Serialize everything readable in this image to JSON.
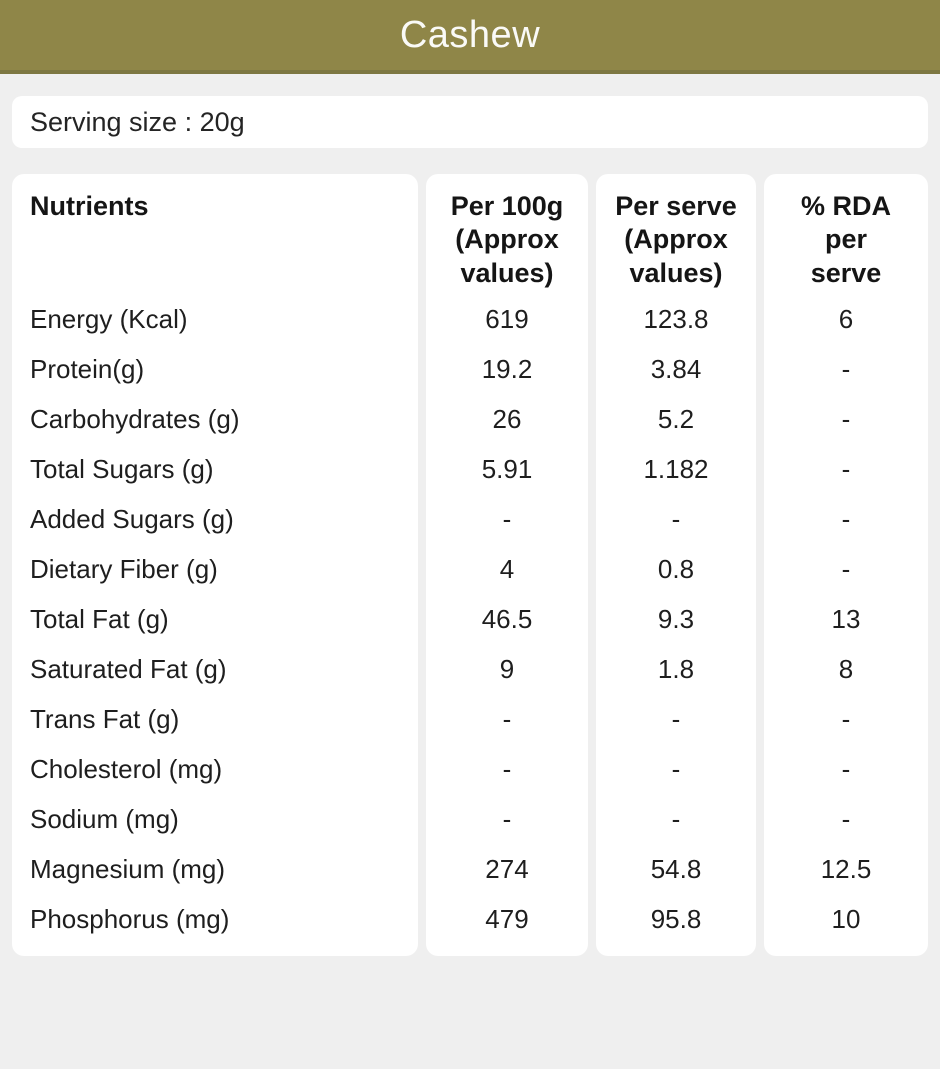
{
  "colors": {
    "header_bg": "#8F8648",
    "header_border": "#7D7742",
    "page_bg": "#EFEFEF",
    "card_bg": "#FFFFFF",
    "text": "#1E1E1E"
  },
  "header": {
    "title": "Cashew"
  },
  "serving": {
    "text": "Serving size : 20g"
  },
  "table": {
    "columns": [
      "Nutrients",
      "Per 100g\n(Approx\nvalues)",
      "Per serve\n(Approx\nvalues)",
      "% RDA\nper\nserve"
    ],
    "rows": [
      {
        "label": "Energy (Kcal)",
        "per_100g": "619",
        "per_serve": "123.8",
        "rda_per_serve": "6"
      },
      {
        "label": "Protein(g)",
        "per_100g": "19.2",
        "per_serve": "3.84",
        "rda_per_serve": "-"
      },
      {
        "label": "Carbohydrates (g)",
        "per_100g": "26",
        "per_serve": "5.2",
        "rda_per_serve": "-"
      },
      {
        "label": "Total Sugars (g)",
        "per_100g": "5.91",
        "per_serve": "1.182",
        "rda_per_serve": "-"
      },
      {
        "label": "Added Sugars (g)",
        "per_100g": "-",
        "per_serve": "-",
        "rda_per_serve": "-"
      },
      {
        "label": "Dietary Fiber (g)",
        "per_100g": "4",
        "per_serve": "0.8",
        "rda_per_serve": "-"
      },
      {
        "label": "Total Fat (g)",
        "per_100g": "46.5",
        "per_serve": "9.3",
        "rda_per_serve": "13"
      },
      {
        "label": "Saturated Fat (g)",
        "per_100g": "9",
        "per_serve": "1.8",
        "rda_per_serve": "8"
      },
      {
        "label": "Trans Fat (g)",
        "per_100g": "-",
        "per_serve": "-",
        "rda_per_serve": "-"
      },
      {
        "label": "Cholesterol (mg)",
        "per_100g": "-",
        "per_serve": "-",
        "rda_per_serve": "-"
      },
      {
        "label": "Sodium (mg)",
        "per_100g": "-",
        "per_serve": "-",
        "rda_per_serve": "-"
      },
      {
        "label": "Magnesium (mg)",
        "per_100g": "274",
        "per_serve": "54.8",
        "rda_per_serve": "12.5"
      },
      {
        "label": "Phosphorus (mg)",
        "per_100g": "479",
        "per_serve": "95.8",
        "rda_per_serve": "10"
      }
    ]
  }
}
